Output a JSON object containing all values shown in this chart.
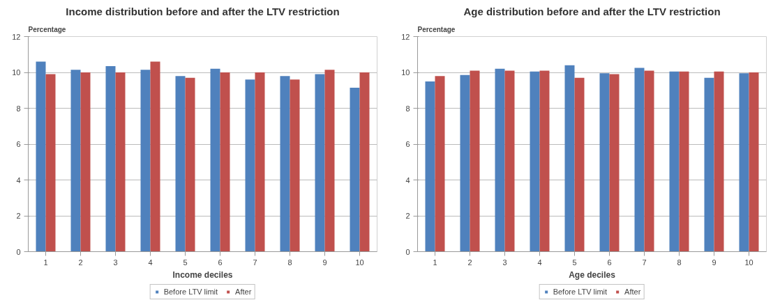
{
  "chart_data": [
    {
      "type": "bar",
      "title": "Income distribution before and after the LTV restriction",
      "xlabel": "Income deciles",
      "ylabel": "Percentage",
      "categories": [
        "1",
        "2",
        "3",
        "4",
        "5",
        "6",
        "7",
        "8",
        "9",
        "10"
      ],
      "ylim": [
        0,
        12
      ],
      "yticks": [
        0,
        2,
        4,
        6,
        8,
        10,
        12
      ],
      "grid": "y",
      "legend": "bottom",
      "series": [
        {
          "name": "Before LTV limit",
          "color": "#4f81bd",
          "values": [
            10.6,
            10.15,
            10.35,
            10.15,
            9.8,
            10.2,
            9.6,
            9.8,
            9.9,
            9.15
          ]
        },
        {
          "name": "After",
          "color": "#c0504d",
          "values": [
            9.9,
            10.0,
            10.0,
            10.6,
            9.7,
            10.0,
            10.0,
            9.6,
            10.15,
            10.0
          ]
        }
      ]
    },
    {
      "type": "bar",
      "title": "Age distribution before and after the LTV restriction",
      "xlabel": "Age deciles",
      "ylabel": "Percentage",
      "categories": [
        "1",
        "2",
        "3",
        "4",
        "5",
        "6",
        "7",
        "8",
        "9",
        "10"
      ],
      "ylim": [
        0,
        12
      ],
      "yticks": [
        0,
        2,
        4,
        6,
        8,
        10,
        12
      ],
      "grid": "y",
      "legend": "bottom",
      "series": [
        {
          "name": "Before LTV limit",
          "color": "#4f81bd",
          "values": [
            9.5,
            9.85,
            10.2,
            10.05,
            10.4,
            9.95,
            10.25,
            10.05,
            9.7,
            9.95
          ]
        },
        {
          "name": "After",
          "color": "#c0504d",
          "values": [
            9.8,
            10.1,
            10.1,
            10.1,
            9.7,
            9.9,
            10.1,
            10.05,
            10.05,
            10.0
          ]
        }
      ]
    }
  ]
}
